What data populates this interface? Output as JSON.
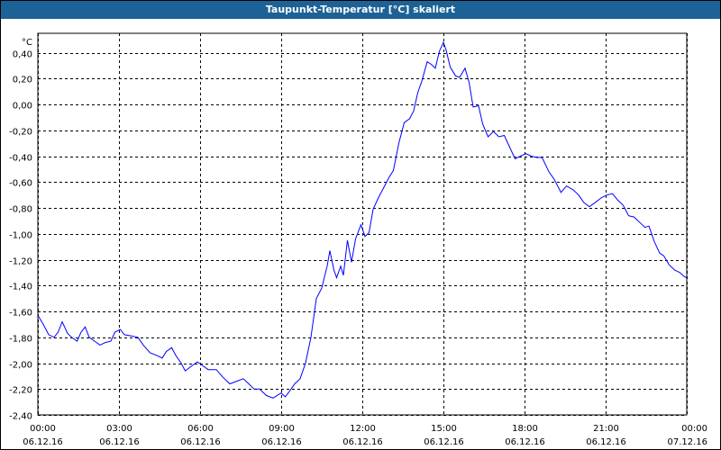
{
  "window": {
    "title": "Taupunkt-Temperatur [°C] skaliert"
  },
  "colors": {
    "titlebar": "#1d6296",
    "line": "#0000ff",
    "grid": "#000000"
  },
  "chart_data": {
    "type": "line",
    "title": "Taupunkt-Temperatur [°C] skaliert",
    "ylabel": "°C",
    "ylim": [
      -2.4,
      0.55
    ],
    "yticks": [
      "0,40",
      "0,20",
      "0,00",
      "-0,20",
      "-0,40",
      "-0,60",
      "-0,80",
      "-1,00",
      "-1,20",
      "-1,40",
      "-1,60",
      "-1,80",
      "-2,00",
      "-2,20",
      "-2,40"
    ],
    "ytick_values": [
      0.4,
      0.2,
      0.0,
      -0.2,
      -0.4,
      -0.6,
      -0.8,
      -1.0,
      -1.2,
      -1.4,
      -1.6,
      -1.8,
      -2.0,
      -2.2,
      -2.4
    ],
    "xticks": [
      {
        "time": "00:00",
        "date": "06.12.16",
        "hour": 0
      },
      {
        "time": "03:00",
        "date": "06.12.16",
        "hour": 3
      },
      {
        "time": "06:00",
        "date": "06.12.16",
        "hour": 6
      },
      {
        "time": "09:00",
        "date": "06.12.16",
        "hour": 9
      },
      {
        "time": "12:00",
        "date": "06.12.16",
        "hour": 12
      },
      {
        "time": "15:00",
        "date": "06.12.16",
        "hour": 15
      },
      {
        "time": "18:00",
        "date": "06.12.16",
        "hour": 18
      },
      {
        "time": "21:00",
        "date": "06.12.16",
        "hour": 21
      },
      {
        "time": "00:00",
        "date": "07.12.16",
        "hour": 24
      }
    ],
    "xlim": [
      0,
      24
    ],
    "grid": true,
    "series": [
      {
        "color": "#0000ff",
        "points": [
          [
            0.0,
            -1.63
          ],
          [
            0.2,
            -1.7
          ],
          [
            0.4,
            -1.78
          ],
          [
            0.6,
            -1.8
          ],
          [
            0.75,
            -1.76
          ],
          [
            0.9,
            -1.68
          ],
          [
            1.1,
            -1.77
          ],
          [
            1.25,
            -1.8
          ],
          [
            1.45,
            -1.83
          ],
          [
            1.6,
            -1.76
          ],
          [
            1.75,
            -1.72
          ],
          [
            1.9,
            -1.8
          ],
          [
            2.1,
            -1.83
          ],
          [
            2.3,
            -1.86
          ],
          [
            2.5,
            -1.84
          ],
          [
            2.7,
            -1.83
          ],
          [
            2.85,
            -1.76
          ],
          [
            3.05,
            -1.74
          ],
          [
            3.2,
            -1.78
          ],
          [
            3.45,
            -1.79
          ],
          [
            3.7,
            -1.8
          ],
          [
            3.9,
            -1.86
          ],
          [
            4.15,
            -1.92
          ],
          [
            4.4,
            -1.94
          ],
          [
            4.6,
            -1.96
          ],
          [
            4.75,
            -1.91
          ],
          [
            4.95,
            -1.88
          ],
          [
            5.1,
            -1.94
          ],
          [
            5.3,
            -2.0
          ],
          [
            5.45,
            -2.06
          ],
          [
            5.7,
            -2.02
          ],
          [
            5.9,
            -1.99
          ],
          [
            6.1,
            -2.02
          ],
          [
            6.3,
            -2.05
          ],
          [
            6.6,
            -2.05
          ],
          [
            6.85,
            -2.11
          ],
          [
            7.1,
            -2.16
          ],
          [
            7.35,
            -2.14
          ],
          [
            7.6,
            -2.12
          ],
          [
            7.8,
            -2.16
          ],
          [
            8.0,
            -2.2
          ],
          [
            8.2,
            -2.2
          ],
          [
            8.45,
            -2.25
          ],
          [
            8.7,
            -2.27
          ],
          [
            8.85,
            -2.25
          ],
          [
            9.0,
            -2.23
          ],
          [
            9.15,
            -2.26
          ],
          [
            9.3,
            -2.22
          ],
          [
            9.5,
            -2.16
          ],
          [
            9.7,
            -2.12
          ],
          [
            9.9,
            -2.0
          ],
          [
            10.1,
            -1.8
          ],
          [
            10.3,
            -1.5
          ],
          [
            10.5,
            -1.42
          ],
          [
            10.7,
            -1.25
          ],
          [
            10.8,
            -1.13
          ],
          [
            10.95,
            -1.28
          ],
          [
            11.05,
            -1.34
          ],
          [
            11.2,
            -1.25
          ],
          [
            11.3,
            -1.32
          ],
          [
            11.45,
            -1.05
          ],
          [
            11.6,
            -1.22
          ],
          [
            11.75,
            -1.04
          ],
          [
            11.95,
            -0.93
          ],
          [
            12.1,
            -1.02
          ],
          [
            12.25,
            -0.99
          ],
          [
            12.4,
            -0.81
          ],
          [
            12.6,
            -0.72
          ],
          [
            12.8,
            -0.64
          ],
          [
            13.0,
            -0.56
          ],
          [
            13.15,
            -0.51
          ],
          [
            13.35,
            -0.3
          ],
          [
            13.55,
            -0.14
          ],
          [
            13.75,
            -0.11
          ],
          [
            13.9,
            -0.05
          ],
          [
            14.05,
            0.09
          ],
          [
            14.2,
            0.18
          ],
          [
            14.4,
            0.33
          ],
          [
            14.55,
            0.31
          ],
          [
            14.7,
            0.28
          ],
          [
            14.85,
            0.41
          ],
          [
            15.0,
            0.48
          ],
          [
            15.1,
            0.42
          ],
          [
            15.25,
            0.29
          ],
          [
            15.45,
            0.22
          ],
          [
            15.6,
            0.21
          ],
          [
            15.8,
            0.28
          ],
          [
            15.95,
            0.17
          ],
          [
            16.1,
            -0.02
          ],
          [
            16.3,
            -0.01
          ],
          [
            16.45,
            -0.15
          ],
          [
            16.65,
            -0.25
          ],
          [
            16.85,
            -0.21
          ],
          [
            17.05,
            -0.25
          ],
          [
            17.25,
            -0.24
          ],
          [
            17.45,
            -0.33
          ],
          [
            17.65,
            -0.42
          ],
          [
            17.85,
            -0.4
          ],
          [
            18.05,
            -0.38
          ],
          [
            18.25,
            -0.4
          ],
          [
            18.45,
            -0.41
          ],
          [
            18.65,
            -0.41
          ],
          [
            18.9,
            -0.52
          ],
          [
            19.1,
            -0.58
          ],
          [
            19.35,
            -0.68
          ],
          [
            19.55,
            -0.63
          ],
          [
            19.8,
            -0.66
          ],
          [
            20.0,
            -0.7
          ],
          [
            20.2,
            -0.76
          ],
          [
            20.4,
            -0.79
          ],
          [
            20.6,
            -0.76
          ],
          [
            20.85,
            -0.72
          ],
          [
            21.05,
            -0.7
          ],
          [
            21.25,
            -0.69
          ],
          [
            21.45,
            -0.74
          ],
          [
            21.65,
            -0.78
          ],
          [
            21.85,
            -0.86
          ],
          [
            22.05,
            -0.87
          ],
          [
            22.25,
            -0.91
          ],
          [
            22.45,
            -0.95
          ],
          [
            22.6,
            -0.94
          ],
          [
            22.8,
            -1.06
          ],
          [
            23.0,
            -1.15
          ],
          [
            23.15,
            -1.17
          ],
          [
            23.35,
            -1.24
          ],
          [
            23.55,
            -1.28
          ],
          [
            23.75,
            -1.3
          ],
          [
            23.9,
            -1.33
          ],
          [
            24.0,
            -1.34
          ]
        ]
      }
    ]
  }
}
